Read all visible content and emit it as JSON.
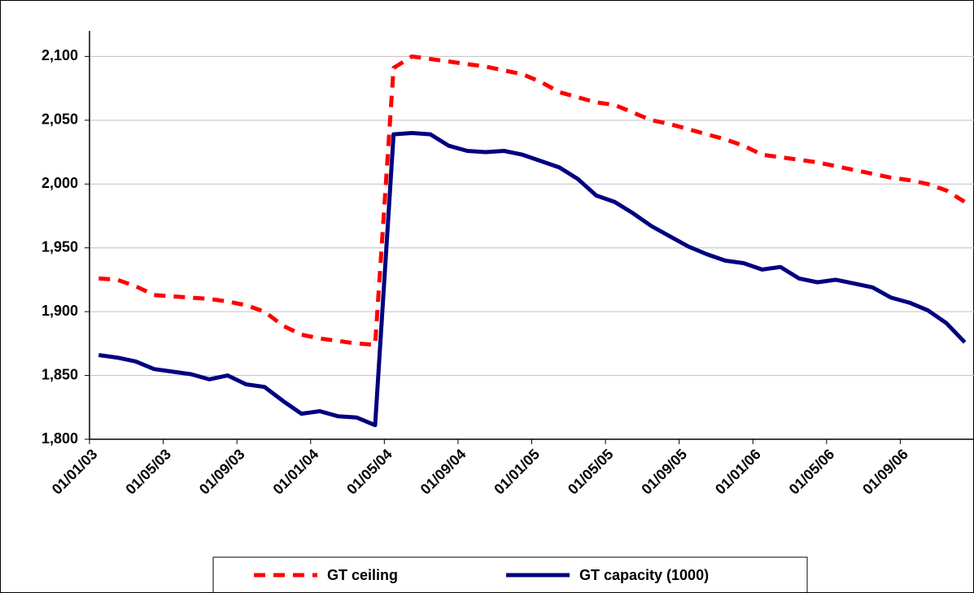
{
  "chart_data": {
    "type": "line",
    "categories": [
      "01/01/03",
      null,
      null,
      null,
      "01/05/03",
      null,
      null,
      null,
      "01/09/03",
      null,
      null,
      null,
      "01/01/04",
      null,
      null,
      null,
      "01/05/04",
      null,
      null,
      null,
      "01/09/04",
      null,
      null,
      null,
      "01/01/05",
      null,
      null,
      null,
      "01/05/05",
      null,
      null,
      null,
      "01/09/05",
      null,
      null,
      null,
      "01/01/06",
      null,
      null,
      null,
      "01/05/06",
      null,
      null,
      null,
      "01/09/06",
      null,
      null,
      null
    ],
    "series": [
      {
        "name": "GT ceiling",
        "color": "#ff0000",
        "dashed": true,
        "values": [
          1926,
          1925,
          1920,
          1913,
          1912,
          1911,
          1910,
          1908,
          1905,
          1900,
          1889,
          1882,
          1879,
          1877,
          1875,
          1874,
          2091,
          2100,
          2098,
          2096,
          2094,
          2092,
          2089,
          2086,
          2080,
          2072,
          2068,
          2064,
          2062,
          2056,
          2050,
          2047,
          2043,
          2039,
          2035,
          2030,
          2023,
          2021,
          2019,
          2017,
          2014,
          2011,
          2008,
          2005,
          2003,
          2000,
          1995,
          1986
        ]
      },
      {
        "name": "GT capacity (1000)",
        "color": "#000080",
        "dashed": false,
        "values": [
          1866,
          1864,
          1861,
          1855,
          1853,
          1851,
          1847,
          1850,
          1843,
          1841,
          1830,
          1820,
          1822,
          1818,
          1817,
          1811,
          2039,
          2040,
          2039,
          2030,
          2026,
          2025,
          2026,
          2023,
          2018,
          2013,
          2004,
          1991,
          1986,
          1977,
          1967,
          1959,
          1951,
          1945,
          1940,
          1938,
          1933,
          1935,
          1926,
          1923,
          1925,
          1922,
          1919,
          1911,
          1907,
          1901,
          1891,
          1876
        ]
      }
    ],
    "ylim": [
      1800,
      2120
    ],
    "yticks": [
      {
        "value": 1800,
        "label": "1,800"
      },
      {
        "value": 1850,
        "label": "1,850"
      },
      {
        "value": 1900,
        "label": "1,900"
      },
      {
        "value": 1950,
        "label": "1,950"
      },
      {
        "value": 2000,
        "label": "2,000"
      },
      {
        "value": 2050,
        "label": "2,050"
      },
      {
        "value": 2100,
        "label": "2,100"
      }
    ],
    "grid": true,
    "legend": "bottom"
  }
}
